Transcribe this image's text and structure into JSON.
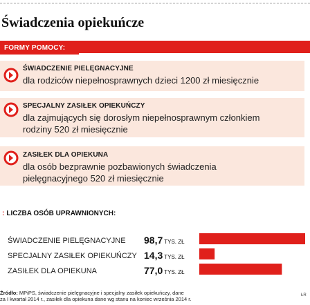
{
  "title": "Świadczenia opiekuńcze",
  "forms_label": "FORMY POMOCY:",
  "help_items": [
    {
      "title": "Świadczenie pielęgnacyjne",
      "desc": [
        "dla rodziców niepełnosprawnych dzieci 1200 zł miesięcznie"
      ],
      "icon": "arrow-right-icon"
    },
    {
      "title": "Specjalny zasiłek opiekuńczy",
      "desc": [
        "dla zajmujących się dorosłym niepełnosprawnym członkiem",
        "rodziny 520 zł miesięcznie"
      ],
      "icon": "arrow-right-icon"
    },
    {
      "title": "Zasiłek dla opiekuna",
      "desc": [
        "dla osób bezprawnie pozbawionych świadczenia",
        "pielęgnacyjnego 520 zł miesięcznie"
      ],
      "icon": "arrow-right-icon"
    }
  ],
  "chart_data": {
    "type": "bar",
    "title": "Liczba osób uprawnionych:",
    "categories": [
      "Świadczenie pielęgnacyjne",
      "Specjalny zasiłek opiekuńczy",
      "Zasiłek dla opiekuna"
    ],
    "values": [
      98.7,
      14.3,
      77.0
    ],
    "value_labels": [
      "98,7",
      "14,3",
      "77,0"
    ],
    "unit": "tys. zł",
    "bar_color": "#e0201b"
  },
  "source": {
    "label": "Źródło:",
    "line1": " MPiPS, świadczenie pielęgnacyjne i specjalny zasiłek opiekuńczy, dane",
    "line2": "za I kwartał 2014 r., zasiłek dla opiekuna dane wg stanu na koniec września 2014 r."
  },
  "corner_tag": "ŁR",
  "colors": {
    "accent": "#e0201b",
    "box_bg": "#fbe7dd"
  }
}
